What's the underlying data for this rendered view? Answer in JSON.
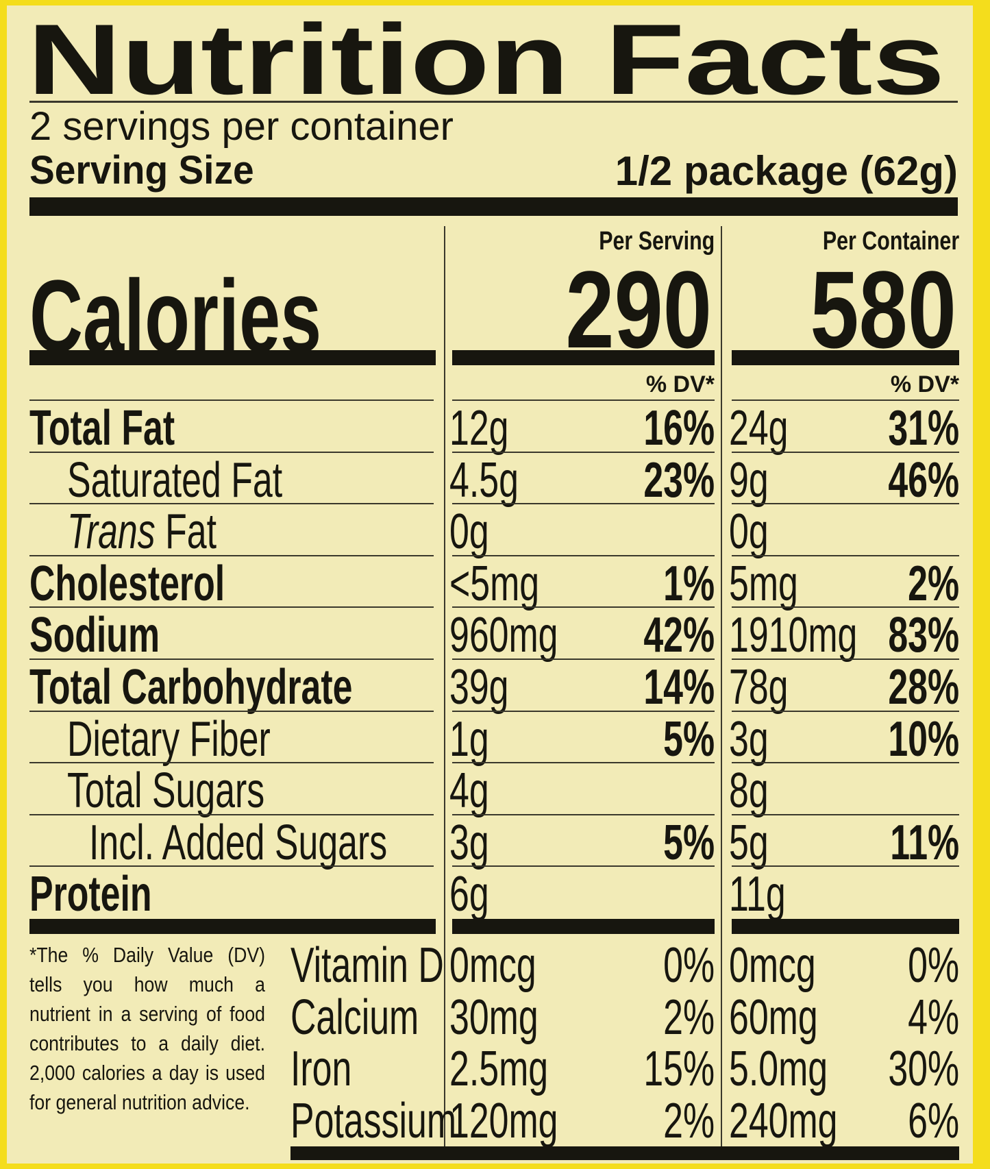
{
  "title": "Nutrition Facts",
  "servings_per_container": "2 servings per container",
  "serving_size": {
    "label": "Serving Size",
    "value": "1/2 package (62g)"
  },
  "calories_label": "Calories",
  "columns": [
    {
      "header": "Per Serving",
      "calories": 290,
      "dv_header": "% DV*"
    },
    {
      "header": "Per Container",
      "calories": 580,
      "dv_header": "% DV*"
    }
  ],
  "nutrients": [
    {
      "name": "Total Fat",
      "values": [
        {
          "amount": "12g",
          "dv": "16%"
        },
        {
          "amount": "24g",
          "dv": "31%"
        }
      ]
    },
    {
      "name": "Saturated Fat",
      "values": [
        {
          "amount": "4.5g",
          "dv": "23%"
        },
        {
          "amount": "9g",
          "dv": "46%"
        }
      ]
    },
    {
      "name_italic": "Trans",
      "name": "Fat",
      "values": [
        {
          "amount": "0g"
        },
        {
          "amount": "0g"
        }
      ]
    },
    {
      "name": "Cholesterol",
      "values": [
        {
          "amount": "<5mg",
          "dv": "1%"
        },
        {
          "amount": "5mg",
          "dv": "2%"
        }
      ]
    },
    {
      "name": "Sodium",
      "values": [
        {
          "amount": "960mg",
          "dv": "42%"
        },
        {
          "amount": "1910mg",
          "dv": "83%"
        }
      ]
    },
    {
      "name": "Total Carbohydrate",
      "values": [
        {
          "amount": "39g",
          "dv": "14%"
        },
        {
          "amount": "78g",
          "dv": "28%"
        }
      ]
    },
    {
      "name": "Dietary Fiber",
      "values": [
        {
          "amount": "1g",
          "dv": "5%"
        },
        {
          "amount": "3g",
          "dv": "10%"
        }
      ]
    },
    {
      "name": "Total Sugars",
      "values": [
        {
          "amount": "4g"
        },
        {
          "amount": "8g"
        }
      ]
    },
    {
      "name": "Incl. Added Sugars",
      "values": [
        {
          "amount": "3g",
          "dv": "5%"
        },
        {
          "amount": "5g",
          "dv": "11%"
        }
      ]
    },
    {
      "name": "Protein",
      "values": [
        {
          "amount": "6g"
        },
        {
          "amount": "11g"
        }
      ]
    }
  ],
  "footnote": "*The % Daily Value (DV) tells you how much a nutrient in a serving of food contributes to a daily diet. 2,000 calories a day is used for general nutrition advice.",
  "vitamins": [
    {
      "name": "Vitamin D",
      "values": [
        {
          "amount": "0mcg",
          "dv": "0%"
        },
        {
          "amount": "0mcg",
          "dv": "0%"
        }
      ]
    },
    {
      "name": "Calcium",
      "values": [
        {
          "amount": "30mg",
          "dv": "2%"
        },
        {
          "amount": "60mg",
          "dv": "4%"
        }
      ]
    },
    {
      "name": "Iron",
      "values": [
        {
          "amount": "2.5mg",
          "dv": "15%"
        },
        {
          "amount": "5.0mg",
          "dv": "30%"
        }
      ]
    },
    {
      "name": "Potassium",
      "values": [
        {
          "amount": "120mg",
          "dv": "2%"
        },
        {
          "amount": "240mg",
          "dv": "6%"
        }
      ]
    }
  ]
}
